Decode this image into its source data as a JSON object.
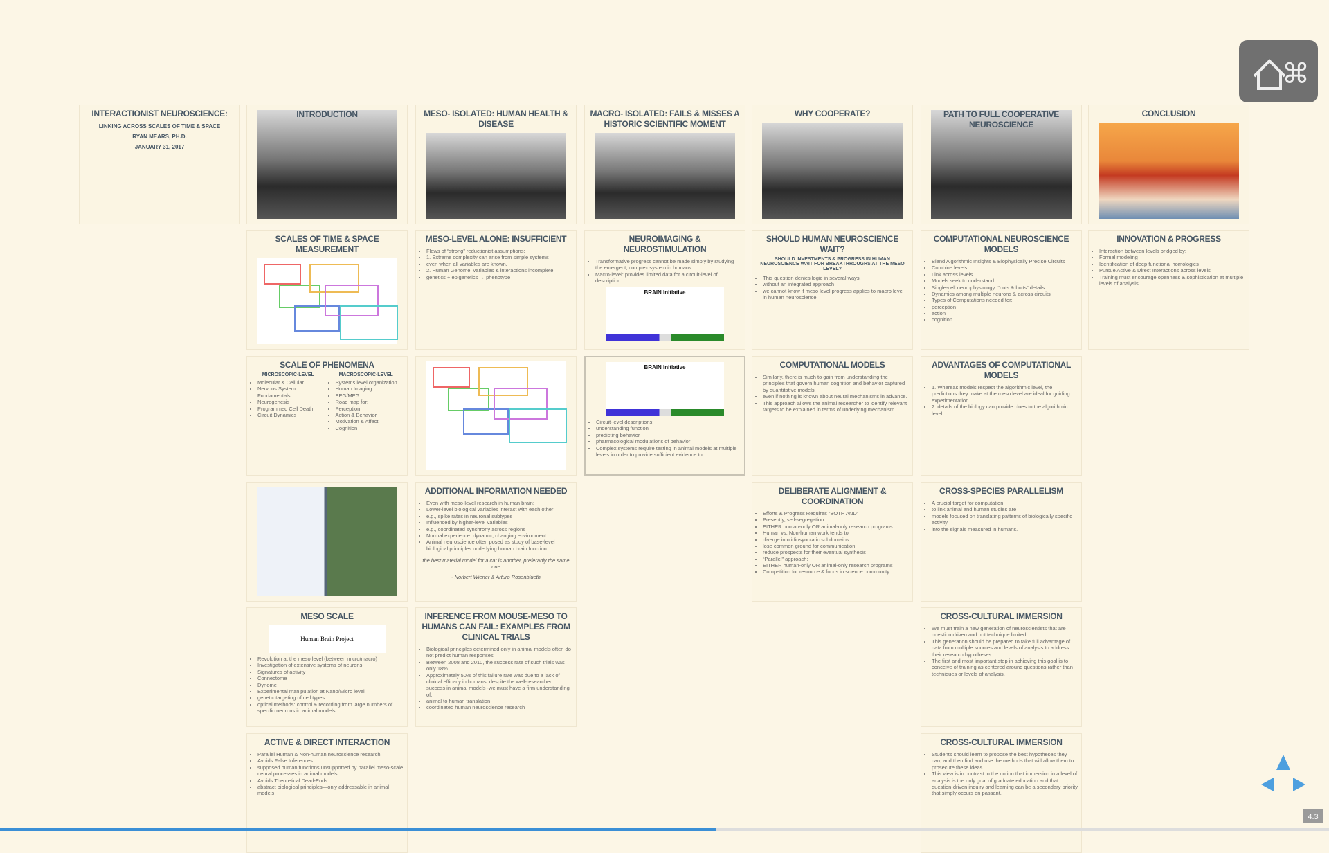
{
  "slides": [
    {
      "title": "INTERACTIONIST NEUROSCIENCE:",
      "lines": [
        "LINKING ACROSS SCALES OF TIME & SPACE",
        "RYAN MEARS, PH.D.",
        "JANUARY 31, 2017"
      ]
    },
    {
      "title": "INTRODUCTION"
    },
    {
      "title": "MESO- ISOLATED: HUMAN HEALTH & DISEASE"
    },
    {
      "title": "MACRO- ISOLATED: FAILS & MISSES A HISTORIC SCIENTIFIC MOMENT"
    },
    {
      "title": "WHY COOPERATE?"
    },
    {
      "title": "PATH TO FULL COOPERATIVE NEUROSCIENCE"
    },
    {
      "title": "CONCLUSION"
    },
    {
      "title": "SCALES OF TIME & SPACE MEASUREMENT"
    },
    {
      "title": "MESO-LEVEL ALONE: INSUFFICIENT",
      "bullets": [
        "Flaws of “strong” reductionist assumptions:",
        "1. Extreme complexity can arise from simple systems",
        "even when all variables are known.",
        "2. Human Genome: variables & interactions incomplete",
        "genetics + epigenetics → phenotype"
      ]
    },
    {
      "title": "NEUROIMAGING & NEUROSTIMULATION",
      "bullets": [
        "Transformative progress cannot be made simply by studying the emergent, complex system in humans",
        "Macro-level: provides limited data for a circuit-level of description"
      ],
      "image_text": "BRAIN Initiative"
    },
    {
      "title": "SHOULD HUMAN NEUROSCIENCE WAIT?",
      "subtitle": "SHOULD INVESTMENTS & PROGRESS IN HUMAN NEUROSCIENCE WAIT FOR BREAKTHROUGHS AT THE MESO LEVEL?",
      "bullets": [
        "This question denies logic in several ways.",
        "without an integrated approach",
        "we cannot know if meso level progress applies to macro level in human neuroscience"
      ]
    },
    {
      "title": "COMPUTATIONAL NEUROSCIENCE MODELS",
      "bullets": [
        "Blend Algorithmic Insights & Biophysically Precise Circuits",
        "Combine levels",
        "Link across levels",
        "Models seek to understand:",
        "Single-cell neurophysiology: “nuts & bolts” details",
        "Dynamics among multiple neurons & across circuits",
        "Types of Computations needed for:",
        "perception",
        "action",
        "cognition"
      ]
    },
    {
      "title": "INNOVATION & PROGRESS",
      "bullets": [
        "Interaction between levels bridged by:",
        "Formal modeling",
        "Identification of deep functional homologies",
        "Pursue Active & Direct Interactions across levels",
        "Training must encourage openness & sophistication at multiple levels of analysis."
      ]
    },
    {
      "title": "SCALE OF PHENOMENA",
      "columns": [
        {
          "heading": "MICROSCOPIC-LEVEL",
          "bullets": [
            "Molecular & Cellular",
            "Nervous System Fundamentals",
            "Neurogenesis",
            "Programmed Cell Death",
            "Circuit Dynamics"
          ]
        },
        {
          "heading": "MACROSCOPIC-LEVEL",
          "bullets": [
            "Systems level organization",
            "Human Imaging",
            "EEG/MEG",
            "Road map for:",
            "Perception",
            "Action & Behavior",
            "Motivation & Affect",
            "Cognition"
          ]
        }
      ]
    },
    {},
    {
      "image_text": "BRAIN Initiative",
      "bullets": [
        "Circuit-level descriptions:",
        "understanding function",
        "predicting behavior",
        "pharmacological modulations of behavior",
        "Complex systems require testing in animal models at multiple levels in order to provide sufficient evidence to"
      ]
    },
    {
      "title": "COMPUTATIONAL MODELS",
      "bullets": [
        "Similarly, there is much to gain from understanding the principles that govern human cognition and behavior captured by quantitative models,",
        "even if nothing is known about neural mechanisms in advance.",
        "This approach allows the animal researcher to identify relevant targets to be explained in terms of underlying mechanism."
      ]
    },
    {
      "title": "ADVANTAGES OF COMPUTATIONAL MODELS",
      "bullets": [
        "1. Whereas models respect the algorithmic level, the predictions they make at the meso level are ideal for guiding experimentation.",
        "2. details of the biology can provide clues to the algorithmic level"
      ]
    },
    {},
    {
      "title": "ADDITIONAL INFORMATION NEEDED",
      "bullets": [
        "Even with meso-level research in human brain:",
        "Lower-level biological variables interact with each other",
        "e.g., spike rates in neuronal subtypes",
        "Influenced by higher-level variables",
        "e.g., coordinated synchrony across regions",
        "Normal experience: dynamic, changing environment.",
        "Animal neuroscience often posed as study of base-level biological principles underlying human brain function."
      ],
      "quote": "the best material model for a cat is another, preferably the same one",
      "attribution": "- Norbert Wiener & Arturo Rosenblueth"
    },
    {
      "title": "DELIBERATE ALIGNMENT & COORDINATION",
      "bullets": [
        "Efforts & Progress Requires “BOTH AND”",
        "Presently, self-segregation:",
        "EITHER human-only OR animal-only research programs",
        "Human vs. Non-human work tends to",
        "diverge into idiosyncratic subdomains",
        "lose common ground for communication",
        "reduce prospects for their eventual synthesis",
        "“Parallel” approach:",
        "EITHER human-only OR animal-only research programs",
        "Competition for resource & focus in science community"
      ]
    },
    {
      "title": "CROSS-SPECIES PARALLELISM",
      "bullets": [
        "A crucial target for computation",
        "to link animal and human studies are",
        "models focused on translating patterns of biologically specific activity",
        "into the signals measured in humans."
      ]
    },
    {
      "title": "MESO SCALE",
      "image_text": "Human Brain Project",
      "bullets": [
        "Revolution at the meso level (between micro/macro)",
        "Investigation of extensive systems of neurons:",
        "Signatures of activity",
        "Connectome",
        "Dynome",
        "Experimental manipulation at Nano/Micro level",
        "genetic targeting of cell types",
        "optical methods: control & recording from large numbers of specific neurons in animal models"
      ]
    },
    {
      "title": "INFERENCE FROM MOUSE-MESO TO HUMANS CAN FAIL: EXAMPLES FROM CLINICAL TRIALS",
      "bullets": [
        "Biological principles determined only in animal models often do not predict human responses",
        "Between 2008 and 2010, the success rate of such trials was only 18%.",
        "Approximately 50% of this failure rate was due to a lack of clinical efficacy in humans, despite the well-researched success in animal models -we must have a firm understanding of:",
        "animal to human translation",
        "coordinated human neuroscience research"
      ]
    },
    {
      "title": "CROSS-CULTURAL IMMERSION",
      "bullets": [
        "We must train a new generation of neuroscientists that are question driven and not technique limited.",
        "This generation should be prepared to take full advantage of data from multiple sources and levels of analysis to address their research hypotheses.",
        "The first and most important step in achieving this goal is to conceive of training as centered around questions rather than techniques or levels of analysis."
      ]
    },
    {
      "title": "ACTIVE & DIRECT INTERACTION",
      "bullets": [
        "Parallel Human & Non-human neuroscience research",
        "Avoids False Inferences:",
        "supposed human functions unsupported by parallel meso-scale neural processes in animal models",
        "Avoids Theoretical Dead-Ends:",
        "abstract biological principles—only addressable in animal models"
      ]
    },
    {
      "title": "CROSS-CULTURAL IMMERSION",
      "bullets": [
        "Students should learn to propose the best hypotheses they can, and then find and use the methods that will allow them to prosecute these ideas",
        "This view is in contrast to the notion that immersion in a level of analysis is the only goal of graduate education and that question-driven inquiry and learning can be a secondary priority that simply occurs on passant."
      ]
    }
  ],
  "navigation": {
    "slide_number": "4.3"
  }
}
